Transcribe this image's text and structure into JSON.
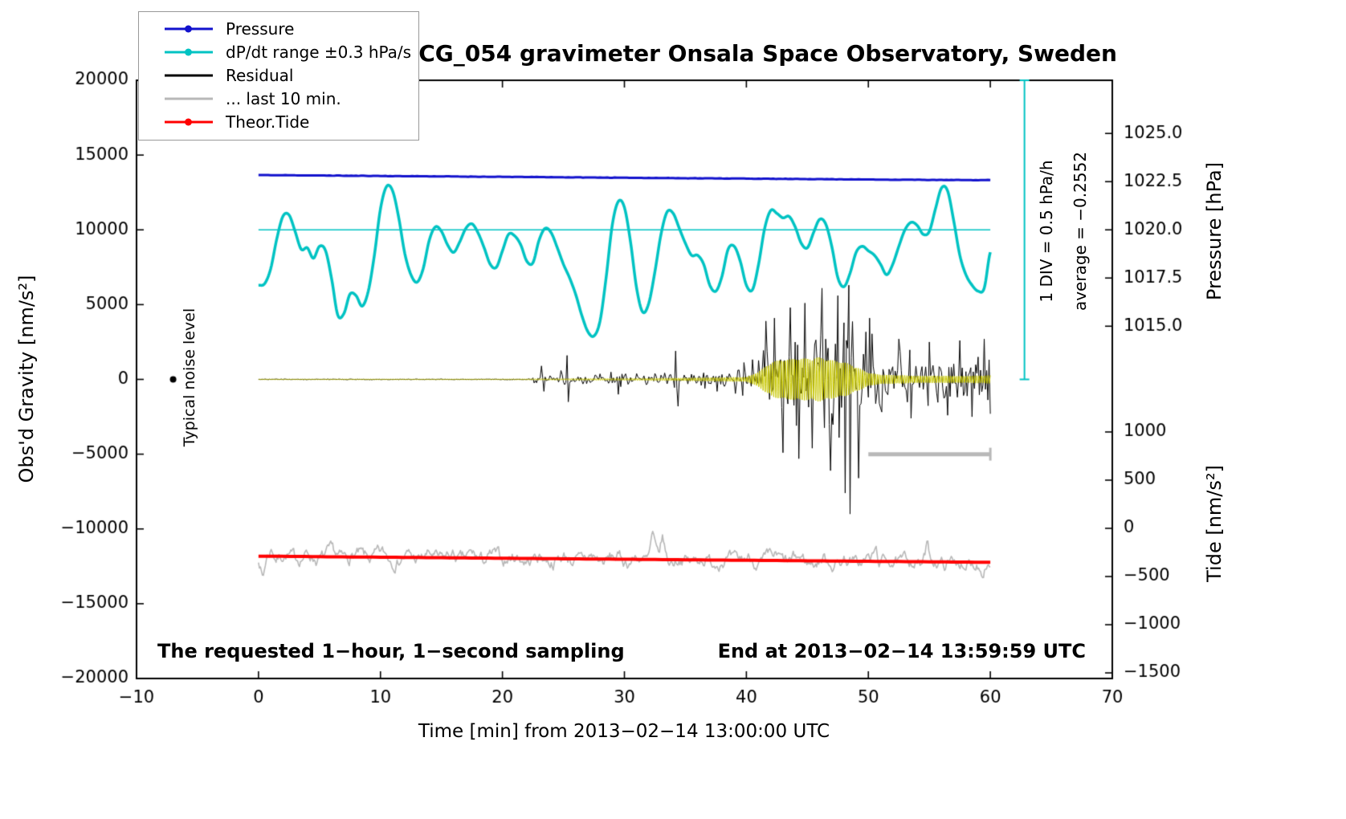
{
  "chart_data": {
    "type": "line",
    "title": "SCG_054 gravimeter Onsala Space Observatory, Sweden",
    "xlabel": "Time [min] from 2013−02−14 13:00:00 UTC",
    "ylabel_left": "Obs'd Gravity [nm/s²]",
    "ylabel_pressure": "Pressure [hPa]",
    "ylabel_tide": "Tide [nm/s²]",
    "xlim": [
      -10,
      70
    ],
    "ylim": [
      -20000,
      20000
    ],
    "x_ticks": [
      {
        "v": -10,
        "label": "−10"
      },
      {
        "v": 0,
        "label": "0"
      },
      {
        "v": 10,
        "label": "10"
      },
      {
        "v": 20,
        "label": "20"
      },
      {
        "v": 30,
        "label": "30"
      },
      {
        "v": 40,
        "label": "40"
      },
      {
        "v": 50,
        "label": "50"
      },
      {
        "v": 60,
        "label": "60"
      },
      {
        "v": 70,
        "label": "70"
      }
    ],
    "y_ticks_left": [
      {
        "v": 20000,
        "label": "20000"
      },
      {
        "v": 15000,
        "label": "15000"
      },
      {
        "v": 10000,
        "label": "10000"
      },
      {
        "v": 5000,
        "label": "5000"
      },
      {
        "v": 0,
        "label": "0"
      },
      {
        "v": -5000,
        "label": "−5000"
      },
      {
        "v": -10000,
        "label": "−10000"
      },
      {
        "v": -15000,
        "label": "−15000"
      },
      {
        "v": -20000,
        "label": "−20000"
      }
    ],
    "pressure_ticks": [
      {
        "g": 16444,
        "label": "1025.0"
      },
      {
        "g": 13222,
        "label": "1022.5"
      },
      {
        "g": 10000,
        "label": "1020.0"
      },
      {
        "g": 6778,
        "label": "1017.5"
      },
      {
        "g": 3556,
        "label": "1015.0"
      }
    ],
    "tide_ticks": [
      {
        "g": -3516,
        "label": "1000"
      },
      {
        "g": -6738,
        "label": "500"
      },
      {
        "g": -9960,
        "label": "0"
      },
      {
        "g": -13182,
        "label": "−500"
      },
      {
        "g": -16404,
        "label": "−1000"
      },
      {
        "g": -19626,
        "label": "−1500"
      }
    ],
    "reference_line": {
      "y": 10000,
      "x0": 0,
      "x1": 60,
      "color": "#00c3c3"
    },
    "legend": [
      {
        "label": "Pressure",
        "color": "#1212cd",
        "marker": true
      },
      {
        "label": "dP/dt range ±0.3 hPa/s",
        "color": "#00c3c3",
        "marker": true
      },
      {
        "label": "Residual",
        "color": "#000000",
        "marker": false
      },
      {
        "label": "... last 10 min.",
        "color": "#b8b8b8",
        "marker": false
      },
      {
        "label": "Theor.Tide",
        "color": "#ff0000",
        "marker": true
      }
    ],
    "annotations": {
      "noise_label": "Typical noise level",
      "noise_dot": {
        "x": -7,
        "y": 0
      },
      "div_note": "1 DIV = 0.5 hPa/h",
      "avg_note": "average = −0.2552",
      "sampling_note": "The requested 1−hour, 1−second sampling",
      "end_note": "End at 2013−02−14 13:59:59 UTC",
      "div_bar": {
        "x": 62.8,
        "y0": 0,
        "y1": 20000
      },
      "scale_bar": {
        "x0": 50,
        "x1": 60,
        "y": -5000
      }
    },
    "series": {
      "pressure": {
        "color": "#1212cd",
        "x0": 0,
        "dx": 1,
        "values": [
          13660,
          13656,
          13650,
          13652,
          13642,
          13632,
          13628,
          13624,
          13612,
          13612,
          13602,
          13596,
          13590,
          13586,
          13578,
          13572,
          13568,
          13560,
          13556,
          13548,
          13545,
          13540,
          13533,
          13528,
          13521,
          13515,
          13510,
          13501,
          13498,
          13490,
          13483,
          13480,
          13472,
          13466,
          13460,
          13453,
          13450,
          13442,
          13438,
          13430,
          13425,
          13418,
          13415,
          13408,
          13401,
          13398,
          13390,
          13385,
          13378,
          13372,
          13368,
          13361,
          13355,
          13350,
          13345,
          13340,
          13336,
          13332,
          13330,
          13328,
          13326
        ]
      },
      "dpdt": {
        "color": "#00c3c3",
        "x0": 0,
        "dx": 0.5,
        "values": [
          6300,
          6400,
          7400,
          9400,
          10900,
          11000,
          9900,
          8700,
          8800,
          8100,
          8900,
          8600,
          6700,
          4300,
          4400,
          5700,
          5600,
          4900,
          5900,
          8300,
          11400,
          12900,
          12600,
          10800,
          8400,
          7000,
          6500,
          7400,
          9300,
          10200,
          9900,
          9000,
          8500,
          9200,
          10100,
          10400,
          9800,
          8800,
          7700,
          7500,
          8600,
          9700,
          9600,
          9000,
          7900,
          7800,
          9300,
          10100,
          9800,
          8800,
          7700,
          6800,
          5700,
          4300,
          3200,
          2900,
          3900,
          6800,
          10300,
          11900,
          11500,
          9200,
          6100,
          4500,
          5100,
          7200,
          9700,
          11200,
          11100,
          10100,
          9100,
          8300,
          8300,
          7700,
          6300,
          5900,
          6900,
          8700,
          8900,
          7900,
          6300,
          6000,
          7700,
          10100,
          11300,
          11100,
          10800,
          10900,
          10200,
          9100,
          8800,
          9800,
          10700,
          10400,
          8900,
          6800,
          6200,
          7100,
          8500,
          8900,
          8600,
          8300,
          7700,
          7000,
          7700,
          8900,
          10000,
          10500,
          10300,
          9700,
          9900,
          11400,
          12800,
          12600,
          10600,
          8300,
          7000,
          6300,
          5900,
          6100,
          8500
        ]
      },
      "residual": {
        "color": "#000000",
        "envelope": [
          [
            0,
            25
          ],
          [
            22.4,
            25
          ],
          [
            22.6,
            260
          ],
          [
            23,
            520
          ],
          [
            24,
            360
          ],
          [
            25,
            620
          ],
          [
            26,
            360
          ],
          [
            27,
            350
          ],
          [
            28,
            420
          ],
          [
            29,
            560
          ],
          [
            30,
            620
          ],
          [
            31,
            460
          ],
          [
            32,
            460
          ],
          [
            33,
            620
          ],
          [
            34,
            920
          ],
          [
            35,
            560
          ],
          [
            36,
            660
          ],
          [
            37,
            760
          ],
          [
            38,
            820
          ],
          [
            39,
            720
          ],
          [
            40,
            780
          ],
          [
            41,
            1900
          ],
          [
            42,
            2700
          ],
          [
            43,
            3100
          ],
          [
            44,
            3400
          ],
          [
            45,
            3100
          ],
          [
            46,
            3900
          ],
          [
            47,
            3700
          ],
          [
            48,
            4600
          ],
          [
            49,
            3900
          ],
          [
            50,
            2900
          ],
          [
            51,
            2300
          ],
          [
            52,
            2500
          ],
          [
            53,
            2000
          ],
          [
            54,
            1800
          ],
          [
            55,
            2000
          ],
          [
            56,
            1800
          ],
          [
            57,
            2000
          ],
          [
            58,
            1800
          ],
          [
            59,
            1900
          ],
          [
            60,
            2100
          ]
        ],
        "spikes": [
          [
            23.2,
            900
          ],
          [
            23.35,
            -800
          ],
          [
            25.3,
            1600
          ],
          [
            25.45,
            -1500
          ],
          [
            29.5,
            -1000
          ],
          [
            34.2,
            1900
          ],
          [
            34.4,
            -1800
          ],
          [
            41.6,
            3900
          ],
          [
            42.3,
            4100
          ],
          [
            43.0,
            -4900
          ],
          [
            43.6,
            4800
          ],
          [
            44.3,
            -5300
          ],
          [
            44.8,
            5100
          ],
          [
            45.4,
            -4600
          ],
          [
            46.2,
            6100
          ],
          [
            46.9,
            -6100
          ],
          [
            47.5,
            5600
          ],
          [
            48.1,
            -7600
          ],
          [
            48.35,
            6300
          ],
          [
            48.55,
            -9000
          ],
          [
            49.2,
            -6600
          ],
          [
            50.1,
            4100
          ],
          [
            52.5,
            2700
          ],
          [
            53.5,
            -2600
          ],
          [
            55.0,
            2500
          ],
          [
            56.5,
            -2400
          ],
          [
            57.5,
            2600
          ],
          [
            58.5,
            -2500
          ],
          [
            59.5,
            2700
          ],
          [
            60.0,
            -2300
          ]
        ]
      },
      "filtered": {
        "color": "#c8c800",
        "envelope": [
          [
            0,
            12
          ],
          [
            20,
            15
          ],
          [
            23,
            45
          ],
          [
            30,
            65
          ],
          [
            35,
            95
          ],
          [
            40,
            160
          ],
          [
            41,
            520
          ],
          [
            42,
            1120
          ],
          [
            43,
            1380
          ],
          [
            44,
            1480
          ],
          [
            45,
            1380
          ],
          [
            46,
            1480
          ],
          [
            47,
            1380
          ],
          [
            48,
            1180
          ],
          [
            49,
            820
          ],
          [
            50,
            470
          ],
          [
            51,
            330
          ],
          [
            52,
            290
          ],
          [
            54,
            250
          ],
          [
            56,
            240
          ],
          [
            58,
            240
          ],
          [
            60,
            270
          ]
        ]
      },
      "last10": {
        "color": "#b8b8b8",
        "spikes": [
          [
            0.35,
            -1500
          ],
          [
            1.1,
            650
          ],
          [
            32.3,
            1500
          ],
          [
            33.15,
            1250
          ],
          [
            50.6,
            800
          ],
          [
            54.8,
            900
          ],
          [
            57.9,
            -850
          ],
          [
            59.3,
            -650
          ]
        ]
      },
      "tide": {
        "color": "#ff0000",
        "x0": 0,
        "dx": 5,
        "values": [
          -11820,
          -11855,
          -11890,
          -11925,
          -11960,
          -11994,
          -12028,
          -12062,
          -12096,
          -12130,
          -12164,
          -12197,
          -12230
        ]
      }
    }
  }
}
